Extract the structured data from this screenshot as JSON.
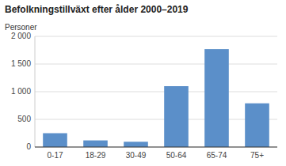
{
  "chart_data": {
    "type": "bar",
    "title": "Befolkningstillväxt efter ålder 2000–2019",
    "y_label": "Personer",
    "categories": [
      "0-17",
      "18-29",
      "30-49",
      "50-64",
      "65-74",
      "75+"
    ],
    "values": [
      250,
      120,
      95,
      1100,
      1770,
      790
    ],
    "color": "#5b8fc9",
    "ylim": [
      0,
      2000
    ],
    "yticks": [
      0,
      500,
      {
        "value": 1000,
        "label": "1 000"
      },
      {
        "value": 1500,
        "label": "1 500"
      },
      {
        "value": 2000,
        "label": "2 000"
      }
    ],
    "grid": true
  }
}
